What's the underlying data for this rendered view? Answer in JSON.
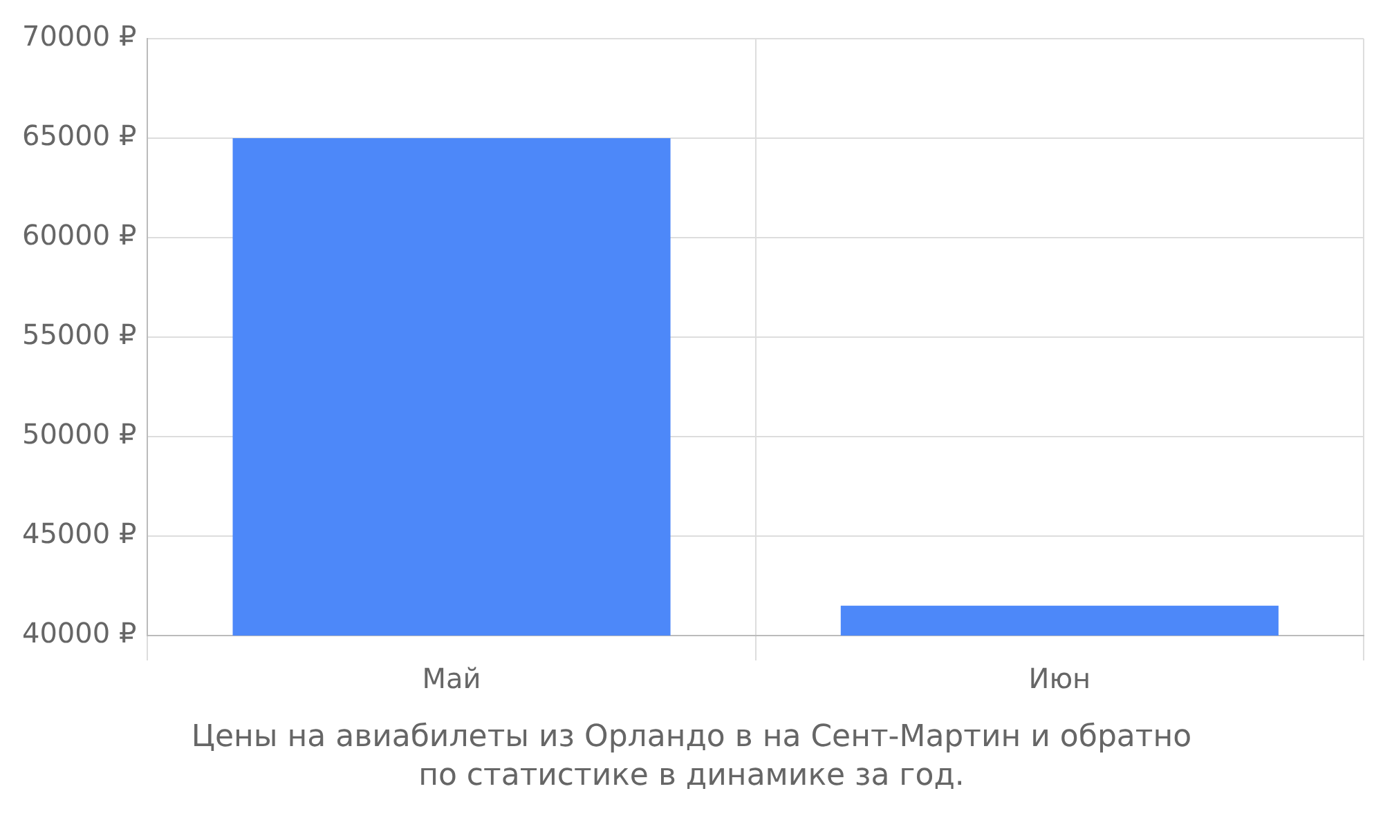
{
  "chart_data": {
    "type": "bar",
    "categories": [
      "Май",
      "Июн"
    ],
    "values": [
      65000,
      41500
    ],
    "color": "#4d88f9",
    "ylim": [
      40000,
      70000
    ],
    "yticks": [
      {
        "value": 40000,
        "label": "40000 ₽"
      },
      {
        "value": 45000,
        "label": "45000 ₽"
      },
      {
        "value": 50000,
        "label": "50000 ₽"
      },
      {
        "value": 55000,
        "label": "55000 ₽"
      },
      {
        "value": 60000,
        "label": "60000 ₽"
      },
      {
        "value": 65000,
        "label": "65000 ₽"
      },
      {
        "value": 70000,
        "label": "70000 ₽"
      }
    ],
    "grid": true,
    "annotations": [
      "Цены на авиабилеты из Орландо в на Сент-Мартин и обратно",
      "по статистике в динамике за год."
    ]
  }
}
